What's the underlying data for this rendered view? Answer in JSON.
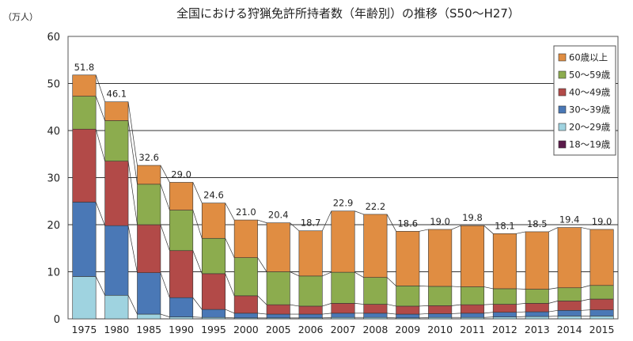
{
  "title": "全国における狩猟免許所持者数（年齢別）の推移（S50～H27）",
  "unit": "（万人）",
  "chart_data": {
    "type": "bar",
    "stacked": true,
    "title": "全国における狩猟免許所持者数（年齢別）の推移（S50～H27）",
    "ylabel": "（万人）",
    "xlabel": "",
    "ylim": [
      0,
      60
    ],
    "yticks": [
      0,
      10,
      20,
      30,
      40,
      50,
      60
    ],
    "grid": true,
    "legend_position": "top-right",
    "categories": [
      "1975",
      "1980",
      "1985",
      "1990",
      "1995",
      "2000",
      "2005",
      "2006",
      "2007",
      "2008",
      "2009",
      "2010",
      "2011",
      "2012",
      "2013",
      "2014",
      "2015"
    ],
    "totals": [
      51.8,
      46.1,
      32.6,
      29.0,
      24.6,
      21.0,
      20.4,
      18.7,
      22.9,
      22.2,
      18.6,
      19.0,
      19.8,
      18.1,
      18.5,
      19.4,
      19.0
    ],
    "total_labels": [
      "51.8",
      "46.1",
      "32.6",
      "29.0",
      "24.6",
      "21.0",
      "20.4",
      "18.7",
      "22.9",
      "22.2",
      "18.6",
      "19.0",
      "19.8",
      "18.1",
      "18.5",
      "19.4",
      "19.0"
    ],
    "series": [
      {
        "name": "18～19歳",
        "color": "#5a1a4a",
        "values": [
          0.0,
          0.0,
          0.0,
          0.0,
          0.0,
          0.0,
          0.0,
          0.0,
          0.0,
          0.0,
          0.0,
          0.0,
          0.0,
          0.0,
          0.0,
          0.0,
          0.0
        ]
      },
      {
        "name": "20～29歳",
        "color": "#9fd3e0",
        "values": [
          9.0,
          5.0,
          1.0,
          0.4,
          0.3,
          0.2,
          0.2,
          0.2,
          0.3,
          0.3,
          0.2,
          0.3,
          0.3,
          0.4,
          0.5,
          0.6,
          0.6
        ]
      },
      {
        "name": "30～39歳",
        "color": "#4a78b6",
        "values": [
          15.8,
          14.8,
          8.8,
          4.1,
          1.7,
          1.0,
          0.8,
          0.8,
          0.9,
          0.9,
          0.8,
          0.8,
          0.9,
          1.0,
          1.0,
          1.2,
          1.3
        ]
      },
      {
        "name": "40～49歳",
        "color": "#b24a48",
        "values": [
          15.5,
          13.7,
          10.2,
          10.0,
          7.6,
          3.7,
          2.0,
          1.7,
          2.1,
          1.9,
          1.7,
          1.7,
          1.8,
          1.7,
          1.8,
          2.0,
          2.3
        ]
      },
      {
        "name": "50～59歳",
        "color": "#8cac4e",
        "values": [
          7.0,
          8.6,
          8.6,
          8.6,
          7.5,
          8.1,
          7.0,
          6.4,
          6.6,
          5.7,
          4.3,
          4.1,
          3.8,
          3.3,
          3.0,
          2.8,
          2.9
        ]
      },
      {
        "name": "60歳以上",
        "color": "#e08d42",
        "values": [
          4.5,
          4.0,
          4.0,
          5.9,
          7.5,
          8.0,
          10.4,
          9.6,
          13.0,
          13.4,
          11.6,
          12.1,
          13.0,
          11.7,
          12.2,
          12.8,
          11.9
        ]
      }
    ]
  }
}
